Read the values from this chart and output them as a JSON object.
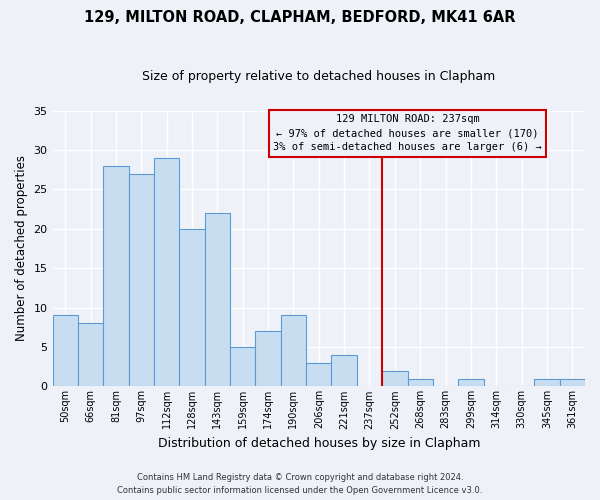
{
  "title": "129, MILTON ROAD, CLAPHAM, BEDFORD, MK41 6AR",
  "subtitle": "Size of property relative to detached houses in Clapham",
  "xlabel": "Distribution of detached houses by size in Clapham",
  "ylabel": "Number of detached properties",
  "bar_labels": [
    "50sqm",
    "66sqm",
    "81sqm",
    "97sqm",
    "112sqm",
    "128sqm",
    "143sqm",
    "159sqm",
    "174sqm",
    "190sqm",
    "206sqm",
    "221sqm",
    "237sqm",
    "252sqm",
    "268sqm",
    "283sqm",
    "299sqm",
    "314sqm",
    "330sqm",
    "345sqm",
    "361sqm"
  ],
  "bar_values": [
    9,
    8,
    28,
    27,
    29,
    20,
    22,
    5,
    7,
    9,
    3,
    4,
    0,
    2,
    1,
    0,
    1,
    0,
    0,
    1,
    1
  ],
  "bar_color": "#c8ddf0",
  "bar_edge_color": "#5b9bd5",
  "reference_line_x_label": "237sqm",
  "reference_line_color": "#cc0000",
  "annotation_title": "129 MILTON ROAD: 237sqm",
  "annotation_line1": "← 97% of detached houses are smaller (170)",
  "annotation_line2": "3% of semi-detached houses are larger (6) →",
  "annotation_box_edge_color": "#cc0000",
  "ylim": [
    0,
    35
  ],
  "yticks": [
    0,
    5,
    10,
    15,
    20,
    25,
    30,
    35
  ],
  "background_color": "#eef2f8",
  "grid_color": "#ffffff",
  "footer_line1": "Contains HM Land Registry data © Crown copyright and database right 2024.",
  "footer_line2": "Contains public sector information licensed under the Open Government Licence v3.0."
}
